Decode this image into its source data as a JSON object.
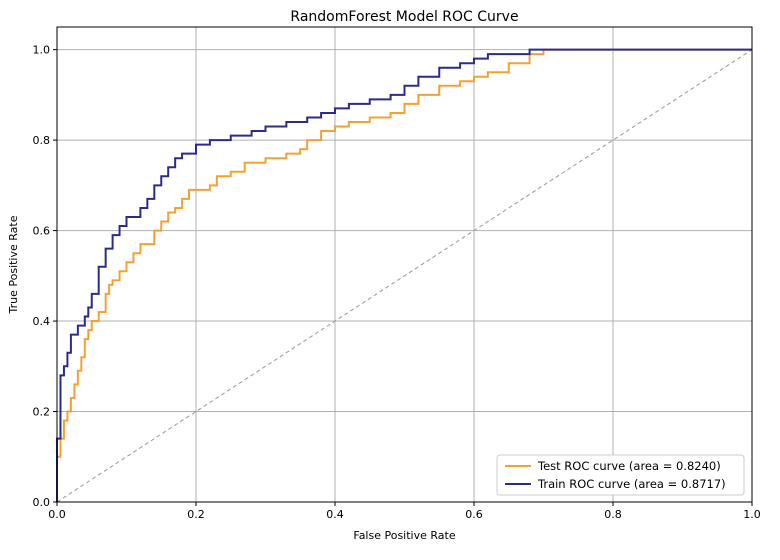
{
  "chart_data": {
    "type": "line",
    "title": "RandomForest Model ROC Curve",
    "xlabel": "False Positive Rate",
    "ylabel": "True Positive Rate",
    "xlim": [
      0,
      1
    ],
    "ylim": [
      0,
      1.05
    ],
    "xticks": [
      0.0,
      0.2,
      0.4,
      0.6,
      0.8,
      1.0
    ],
    "yticks": [
      0.0,
      0.2,
      0.4,
      0.6,
      0.8,
      1.0
    ],
    "xtick_labels": [
      "0.0",
      "0.2",
      "0.4",
      "0.6",
      "0.8",
      "1.0"
    ],
    "ytick_labels": [
      "0.0",
      "0.2",
      "0.4",
      "0.6",
      "0.8",
      "1.0"
    ],
    "grid": true,
    "legend_position": "lower-right",
    "series": [
      {
        "name": "Test ROC curve (area = 0.8240)",
        "color": "#f5a033",
        "x": [
          0,
          0,
          0.005,
          0.01,
          0.015,
          0.02,
          0.025,
          0.03,
          0.035,
          0.04,
          0.045,
          0.05,
          0.06,
          0.07,
          0.075,
          0.08,
          0.09,
          0.1,
          0.11,
          0.12,
          0.14,
          0.15,
          0.16,
          0.17,
          0.18,
          0.19,
          0.2,
          0.22,
          0.23,
          0.25,
          0.27,
          0.3,
          0.33,
          0.35,
          0.36,
          0.38,
          0.4,
          0.42,
          0.45,
          0.48,
          0.5,
          0.52,
          0.55,
          0.58,
          0.6,
          0.62,
          0.65,
          0.68,
          0.7,
          0.8,
          1.0
        ],
        "y": [
          0,
          0.1,
          0.14,
          0.18,
          0.2,
          0.23,
          0.26,
          0.29,
          0.32,
          0.36,
          0.38,
          0.4,
          0.42,
          0.46,
          0.48,
          0.49,
          0.51,
          0.53,
          0.55,
          0.57,
          0.6,
          0.62,
          0.64,
          0.65,
          0.67,
          0.69,
          0.69,
          0.7,
          0.72,
          0.73,
          0.75,
          0.76,
          0.77,
          0.78,
          0.8,
          0.82,
          0.83,
          0.84,
          0.85,
          0.86,
          0.88,
          0.9,
          0.92,
          0.93,
          0.94,
          0.95,
          0.97,
          0.99,
          1.0,
          1.0,
          1.0
        ]
      },
      {
        "name": "Train ROC curve (area = 0.8717)",
        "color": "#2a2a8f",
        "x": [
          0,
          0,
          0.005,
          0.01,
          0.015,
          0.02,
          0.03,
          0.04,
          0.045,
          0.05,
          0.06,
          0.07,
          0.08,
          0.09,
          0.1,
          0.12,
          0.13,
          0.14,
          0.15,
          0.16,
          0.17,
          0.18,
          0.2,
          0.22,
          0.25,
          0.28,
          0.3,
          0.33,
          0.36,
          0.38,
          0.4,
          0.42,
          0.45,
          0.48,
          0.5,
          0.52,
          0.55,
          0.58,
          0.6,
          0.62,
          0.65,
          0.68,
          0.7,
          0.8,
          1.0
        ],
        "y": [
          0,
          0.14,
          0.28,
          0.3,
          0.33,
          0.37,
          0.39,
          0.41,
          0.43,
          0.46,
          0.52,
          0.56,
          0.59,
          0.61,
          0.63,
          0.65,
          0.67,
          0.7,
          0.72,
          0.74,
          0.76,
          0.77,
          0.79,
          0.8,
          0.81,
          0.82,
          0.83,
          0.84,
          0.85,
          0.86,
          0.87,
          0.88,
          0.89,
          0.9,
          0.92,
          0.94,
          0.96,
          0.97,
          0.98,
          0.99,
          0.99,
          1.0,
          1.0,
          1.0,
          1.0
        ]
      },
      {
        "name": "",
        "color": "#a0a0a0",
        "dashed": true,
        "x": [
          0,
          1
        ],
        "y": [
          0,
          1
        ]
      }
    ]
  }
}
